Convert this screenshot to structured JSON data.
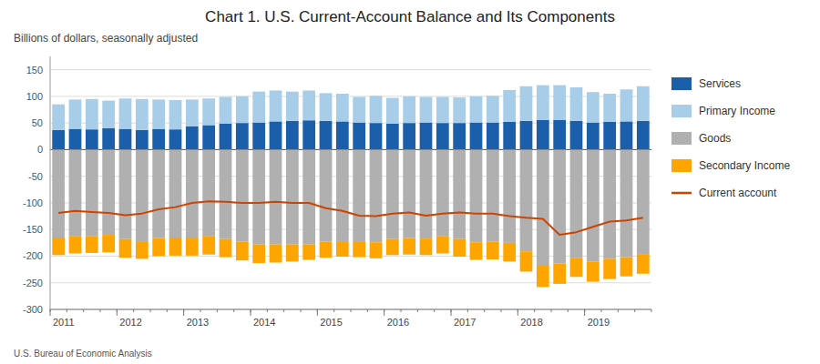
{
  "chart_data": {
    "type": "bar",
    "title": "Chart 1. U.S. Current-Account Balance and Its Components",
    "subtitle": "Billions of dollars, seasonally adjusted",
    "source": "U.S. Bureau of Economic Analysis",
    "stacked": true,
    "grid": true,
    "legend": "right",
    "categories": [
      "2011",
      null,
      null,
      null,
      "2012",
      null,
      null,
      null,
      "2013",
      null,
      null,
      null,
      "2014",
      null,
      null,
      null,
      "2015",
      null,
      null,
      null,
      "2016",
      null,
      null,
      null,
      "2017",
      null,
      null,
      null,
      "2018",
      null,
      null,
      null,
      "2019",
      null,
      null,
      null
    ],
    "ylim": [
      -300,
      175
    ],
    "yticks": [
      -300,
      -250,
      -200,
      -150,
      -100,
      -50,
      0,
      50,
      100,
      150
    ],
    "series": [
      {
        "name": "Services",
        "type": "bar",
        "color": "#1b5faa",
        "values": [
          37,
          39,
          38,
          40,
          39,
          37,
          39,
          38,
          44,
          46,
          49,
          50,
          51,
          53,
          54,
          55,
          54,
          53,
          51,
          50,
          49,
          50,
          51,
          50,
          50,
          51,
          51,
          52,
          54,
          56,
          56,
          54,
          51,
          52,
          53,
          54
        ]
      },
      {
        "name": "Primary Income",
        "type": "bar",
        "color": "#a8cde8",
        "values": [
          48,
          55,
          57,
          52,
          57,
          58,
          55,
          55,
          50,
          50,
          50,
          50,
          58,
          58,
          55,
          56,
          52,
          52,
          48,
          51,
          48,
          50,
          48,
          49,
          48,
          49,
          50,
          60,
          65,
          65,
          65,
          63,
          57,
          53,
          60,
          65
        ]
      },
      {
        "name": "Goods",
        "type": "bar",
        "color": "#b0b0b0",
        "values": [
          -165,
          -163,
          -162,
          -160,
          -168,
          -172,
          -166,
          -165,
          -165,
          -163,
          -168,
          -173,
          -178,
          -178,
          -178,
          -178,
          -173,
          -172,
          -172,
          -174,
          -168,
          -166,
          -167,
          -162,
          -168,
          -174,
          -173,
          -175,
          -191,
          -218,
          -214,
          -204,
          -210,
          -205,
          -202,
          -196
        ]
      },
      {
        "name": "Secondary Income",
        "type": "bar",
        "color": "#ffa500",
        "values": [
          -33,
          -32,
          -32,
          -33,
          -35,
          -33,
          -34,
          -34,
          -34,
          -34,
          -34,
          -35,
          -35,
          -34,
          -32,
          -29,
          -30,
          -29,
          -30,
          -30,
          -30,
          -31,
          -31,
          -33,
          -33,
          -33,
          -33,
          -35,
          -38,
          -40,
          -38,
          -35,
          -38,
          -38,
          -36,
          -37
        ]
      },
      {
        "name": "Current account",
        "type": "line",
        "color": "#cc4400",
        "values": [
          -119,
          -115,
          -117,
          -119,
          -123,
          -120,
          -112,
          -108,
          -100,
          -97,
          -98,
          -100,
          -100,
          -98,
          -100,
          -100,
          -110,
          -115,
          -124,
          -125,
          -120,
          -118,
          -124,
          -120,
          -118,
          -120,
          -120,
          -125,
          -128,
          -130,
          -160,
          -155,
          -145,
          -135,
          -133,
          -128
        ]
      }
    ]
  }
}
